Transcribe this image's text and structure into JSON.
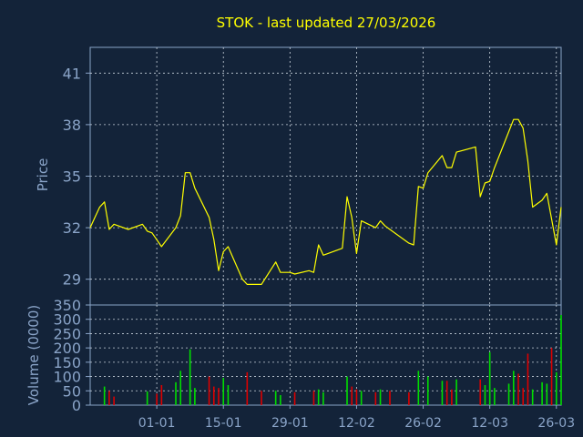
{
  "colors": {
    "background": "#132339",
    "axis": "#8aa4c8",
    "grid": "#c8d2dc",
    "price_line": "#ffff00",
    "volume_up": "#00dd00",
    "volume_down": "#dd0000",
    "title": "#ffff00",
    "label": "#8aa4c8"
  },
  "chart_data": [
    {
      "type": "line",
      "title": "STOK - last updated 27/03/2026",
      "ylabel": "Price",
      "xlabel": "",
      "ylim": [
        27.5,
        42.5
      ],
      "yticks": [
        29,
        32,
        35,
        38,
        41
      ],
      "xlim": [
        "2025-12-18",
        "2026-03-27"
      ],
      "grid": true,
      "x_tick_labels": [
        "01-01",
        "15-01",
        "29-01",
        "12-02",
        "26-02",
        "12-03",
        "26-03"
      ],
      "x_tick_dates": [
        "2026-01-01",
        "2026-01-15",
        "2026-01-29",
        "2026-02-12",
        "2026-02-26",
        "2026-03-12",
        "2026-03-26"
      ],
      "series": [
        {
          "values": [
            [
              "2025-12-18",
              32.0
            ],
            [
              "2025-12-19",
              32.6
            ],
            [
              "2025-12-20",
              33.2
            ],
            [
              "2025-12-21",
              33.5
            ],
            [
              "2025-12-22",
              31.9
            ],
            [
              "2025-12-23",
              32.2
            ],
            [
              "2025-12-26",
              31.9
            ],
            [
              "2025-12-29",
              32.2
            ],
            [
              "2025-12-30",
              31.8
            ],
            [
              "2025-12-31",
              31.7
            ],
            [
              "2026-01-01",
              31.3
            ],
            [
              "2026-01-02",
              30.9
            ],
            [
              "2026-01-05",
              32.0
            ],
            [
              "2026-01-06",
              32.7
            ],
            [
              "2026-01-07",
              35.2
            ],
            [
              "2026-01-08",
              35.2
            ],
            [
              "2026-01-09",
              34.3
            ],
            [
              "2026-01-12",
              32.6
            ],
            [
              "2026-01-13",
              31.3
            ],
            [
              "2026-01-14",
              29.5
            ],
            [
              "2026-01-15",
              30.6
            ],
            [
              "2026-01-16",
              30.9
            ],
            [
              "2026-01-19",
              29.0
            ],
            [
              "2026-01-20",
              28.7
            ],
            [
              "2026-01-23",
              28.7
            ],
            [
              "2026-01-26",
              30.0
            ],
            [
              "2026-01-27",
              29.4
            ],
            [
              "2026-01-29",
              29.4
            ],
            [
              "2026-01-30",
              29.3
            ],
            [
              "2026-02-02",
              29.5
            ],
            [
              "2026-02-03",
              29.4
            ],
            [
              "2026-02-04",
              31.0
            ],
            [
              "2026-02-05",
              30.4
            ],
            [
              "2026-02-06",
              30.5
            ],
            [
              "2026-02-09",
              30.8
            ],
            [
              "2026-02-10",
              33.8
            ],
            [
              "2026-02-11",
              32.6
            ],
            [
              "2026-02-12",
              30.5
            ],
            [
              "2026-02-13",
              32.4
            ],
            [
              "2026-02-16",
              32.0
            ],
            [
              "2026-02-17",
              32.4
            ],
            [
              "2026-02-18",
              32.1
            ],
            [
              "2026-02-19",
              31.9
            ],
            [
              "2026-02-23",
              31.1
            ],
            [
              "2026-02-24",
              31.0
            ],
            [
              "2026-02-25",
              34.4
            ],
            [
              "2026-02-26",
              34.3
            ],
            [
              "2026-02-27",
              35.2
            ],
            [
              "2026-03-02",
              36.2
            ],
            [
              "2026-03-03",
              35.5
            ],
            [
              "2026-03-04",
              35.5
            ],
            [
              "2026-03-05",
              36.4
            ],
            [
              "2026-03-09",
              36.7
            ],
            [
              "2026-03-10",
              33.8
            ],
            [
              "2026-03-11",
              34.6
            ],
            [
              "2026-03-12",
              34.7
            ],
            [
              "2026-03-13",
              35.5
            ],
            [
              "2026-03-16",
              37.6
            ],
            [
              "2026-03-17",
              38.3
            ],
            [
              "2026-03-18",
              38.3
            ],
            [
              "2026-03-19",
              37.8
            ],
            [
              "2026-03-20",
              35.9
            ],
            [
              "2026-03-21",
              33.2
            ],
            [
              "2026-03-23",
              33.6
            ],
            [
              "2026-03-24",
              34.0
            ],
            [
              "2026-03-26",
              31.0
            ],
            [
              "2026-03-27",
              33.2
            ]
          ]
        }
      ]
    },
    {
      "type": "bar",
      "ylabel": "Volume (0000)",
      "ylim": [
        0,
        350
      ],
      "yticks": [
        0,
        50,
        100,
        150,
        200,
        250,
        300,
        350
      ],
      "grid": true,
      "series": [
        {
          "name": "up",
          "values": [
            [
              "2025-12-21",
              65
            ],
            [
              "2025-12-30",
              48
            ],
            [
              "2026-01-05",
              80
            ],
            [
              "2026-01-06",
              120
            ],
            [
              "2026-01-08",
              195
            ],
            [
              "2026-01-09",
              60
            ],
            [
              "2026-01-15",
              95
            ],
            [
              "2026-01-16",
              70
            ],
            [
              "2026-01-26",
              50
            ],
            [
              "2026-01-27",
              35
            ],
            [
              "2026-02-04",
              55
            ],
            [
              "2026-02-05",
              45
            ],
            [
              "2026-02-10",
              100
            ],
            [
              "2026-02-13",
              50
            ],
            [
              "2026-02-17",
              55
            ],
            [
              "2026-02-25",
              120
            ],
            [
              "2026-02-27",
              100
            ],
            [
              "2026-03-02",
              85
            ],
            [
              "2026-03-05",
              90
            ],
            [
              "2026-03-11",
              70
            ],
            [
              "2026-03-12",
              185
            ],
            [
              "2026-03-13",
              60
            ],
            [
              "2026-03-16",
              75
            ],
            [
              "2026-03-17",
              120
            ],
            [
              "2026-03-21",
              55
            ],
            [
              "2026-03-23",
              80
            ],
            [
              "2026-03-24",
              75
            ],
            [
              "2026-03-26",
              115
            ],
            [
              "2026-03-27",
              315
            ]
          ]
        },
        {
          "name": "down",
          "values": [
            [
              "2025-12-22",
              50
            ],
            [
              "2025-12-23",
              30
            ],
            [
              "2026-01-01",
              40
            ],
            [
              "2026-01-02",
              70
            ],
            [
              "2026-01-12",
              100
            ],
            [
              "2026-01-13",
              65
            ],
            [
              "2026-01-14",
              60
            ],
            [
              "2026-01-20",
              115
            ],
            [
              "2026-01-23",
              50
            ],
            [
              "2026-01-30",
              45
            ],
            [
              "2026-02-03",
              50
            ],
            [
              "2026-02-11",
              65
            ],
            [
              "2026-02-12",
              55
            ],
            [
              "2026-02-16",
              45
            ],
            [
              "2026-02-19",
              50
            ],
            [
              "2026-02-23",
              45
            ],
            [
              "2026-03-03",
              85
            ],
            [
              "2026-03-04",
              55
            ],
            [
              "2026-03-10",
              90
            ],
            [
              "2026-03-18",
              110
            ],
            [
              "2026-03-19",
              60
            ],
            [
              "2026-03-20",
              180
            ],
            [
              "2026-03-25",
              200
            ]
          ]
        }
      ]
    }
  ]
}
